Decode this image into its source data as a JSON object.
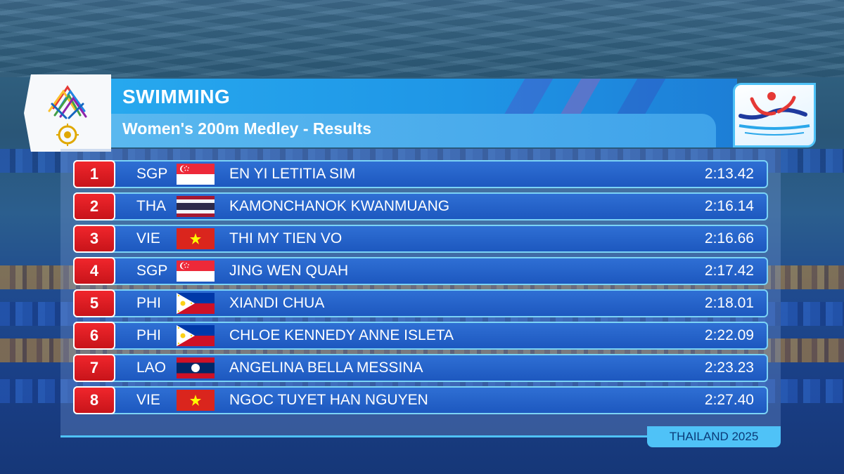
{
  "header": {
    "title": "SWIMMING",
    "subtitle": "Women's 200m Medley - Results"
  },
  "results": [
    {
      "rank": "1",
      "country": "SGP",
      "flag": "singapore-flag",
      "name": "EN YI LETITIA SIM",
      "time": "2:13.42"
    },
    {
      "rank": "2",
      "country": "THA",
      "flag": "thailand-flag",
      "name": "KAMONCHANOK KWANMUANG",
      "time": "2:16.14"
    },
    {
      "rank": "3",
      "country": "VIE",
      "flag": "vietnam-flag",
      "name": "THI MY TIEN VO",
      "time": "2:16.66"
    },
    {
      "rank": "4",
      "country": "SGP",
      "flag": "singapore-flag",
      "name": "JING WEN QUAH",
      "time": "2:17.42"
    },
    {
      "rank": "5",
      "country": "PHI",
      "flag": "philippines-flag",
      "name": "XIANDI CHUA",
      "time": "2:18.01"
    },
    {
      "rank": "6",
      "country": "PHI",
      "flag": "philippines-flag",
      "name": "CHLOE KENNEDY ANNE ISLETA",
      "time": "2:22.09"
    },
    {
      "rank": "7",
      "country": "LAO",
      "flag": "laos-flag",
      "name": "ANGELINA BELLA MESSINA",
      "time": "2:23.23"
    },
    {
      "rank": "8",
      "country": "VIE",
      "flag": "vietnam-flag",
      "name": "NGOC TUYET HAN NGUYEN",
      "time": "2:27.40"
    }
  ],
  "footer": {
    "label": "THAILAND 2025"
  },
  "logos": {
    "left": "sea-games-federation-logo",
    "right": "thailand-2025-games-logo"
  },
  "colors": {
    "rank_badge": "#d81b20",
    "row_bg": "#2565c8",
    "accent": "#4fc2f7"
  }
}
